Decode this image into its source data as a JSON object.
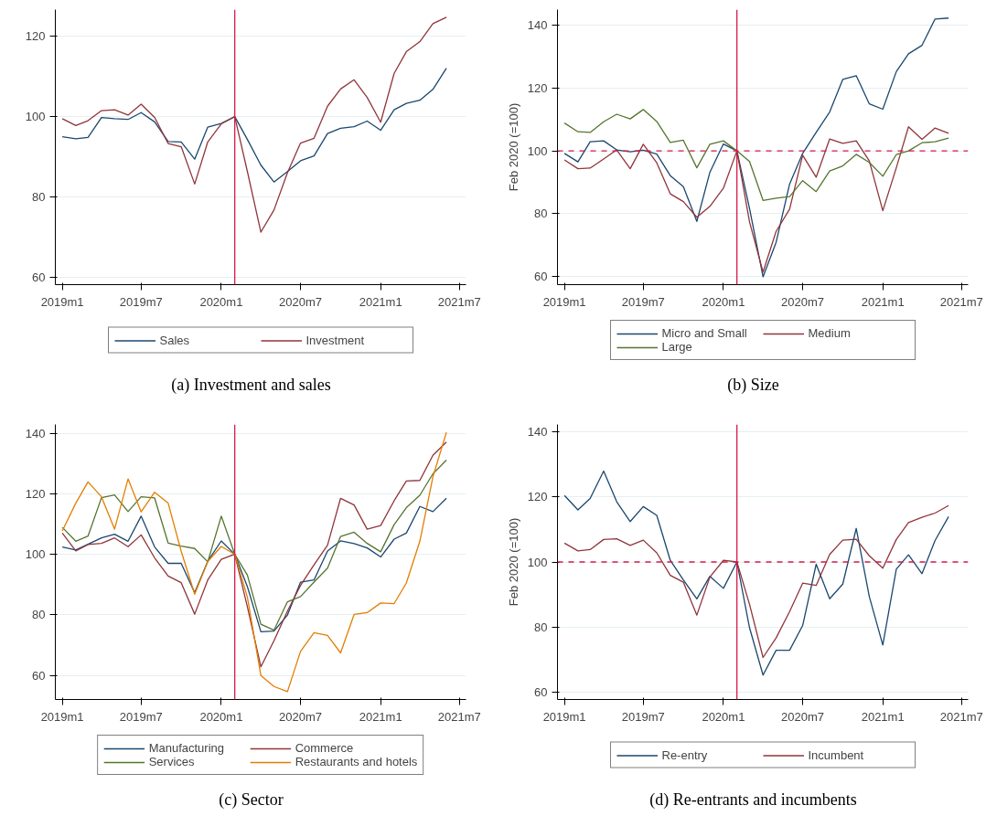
{
  "chart_data": [
    {
      "type": "line",
      "title": "(a) Investment and sales",
      "xlim": [
        "2018-12-16",
        "2021-07-16"
      ],
      "ylim": [
        58.1,
        126.7
      ],
      "grid": "y",
      "legend": "bottom",
      "x": [
        "2019-01",
        "2019-02",
        "2019-03",
        "2019-04",
        "2019-05",
        "2019-06",
        "2019-07",
        "2019-08",
        "2019-09",
        "2019-10",
        "2019-11",
        "2019-12",
        "2020-01",
        "2020-02",
        "2020-03",
        "2020-04",
        "2020-05",
        "2020-06",
        "2020-07",
        "2020-08",
        "2020-09",
        "2020-10",
        "2020-11",
        "2020-12",
        "2021-01",
        "2021-02",
        "2021-03",
        "2021-04",
        "2021-05",
        "2021-06"
      ],
      "xticks": [
        {
          "value": "2019-01",
          "label": "2019m1"
        },
        {
          "value": "2019-07",
          "label": "2019m7"
        },
        {
          "value": "2020-01",
          "label": "2020m1"
        },
        {
          "value": "2020-07",
          "label": "2020m7"
        },
        {
          "value": "2021-01",
          "label": "2021m1"
        },
        {
          "value": "2021-07",
          "label": "2021m7"
        }
      ],
      "yticks": [
        60,
        80,
        100,
        120
      ],
      "ref_lines": [
        {
          "axis": "x",
          "value": "2020-02",
          "label": null,
          "color": "#d6194a",
          "line_style": "solid"
        }
      ],
      "series": [
        {
          "name": "Sales",
          "color": "#1a476f",
          "values": [
            95.0,
            94.5,
            94.8,
            99.8,
            99.5,
            99.3,
            101.0,
            98.7,
            93.8,
            93.7,
            89.4,
            97.4,
            98.3,
            100,
            94.3,
            87.9,
            83.7,
            86.3,
            89.0,
            90.2,
            95.8,
            97.1,
            97.5,
            98.9,
            96.6,
            101.7,
            103.3,
            104.1,
            106.8,
            112.1
          ]
        },
        {
          "name": "Investment",
          "color": "#90353b",
          "values": [
            99.5,
            97.8,
            99.0,
            101.5,
            101.7,
            100.4,
            103.1,
            99.8,
            93.3,
            92.5,
            83.2,
            93.7,
            98.2,
            100,
            86.3,
            71.2,
            76.7,
            86.0,
            93.4,
            94.6,
            102.6,
            106.9,
            109.2,
            104.8,
            98.6,
            110.8,
            116.2,
            118.7,
            123.2,
            124.8
          ]
        }
      ]
    },
    {
      "type": "line",
      "title": "(b) Size",
      "ylabel": "Feb 2020 (=100)",
      "xlim": [
        "2018-12-16",
        "2021-07-16"
      ],
      "ylim": [
        57.3,
        145.1
      ],
      "grid": "y",
      "legend": "bottom",
      "x": [
        "2019-01",
        "2019-02",
        "2019-03",
        "2019-04",
        "2019-05",
        "2019-06",
        "2019-07",
        "2019-08",
        "2019-09",
        "2019-10",
        "2019-11",
        "2019-12",
        "2020-01",
        "2020-02",
        "2020-03",
        "2020-04",
        "2020-05",
        "2020-06",
        "2020-07",
        "2020-08",
        "2020-09",
        "2020-10",
        "2020-11",
        "2020-12",
        "2021-01",
        "2021-02",
        "2021-03",
        "2021-04",
        "2021-05",
        "2021-06"
      ],
      "xticks": [
        {
          "value": "2019-01",
          "label": "2019m1"
        },
        {
          "value": "2019-07",
          "label": "2019m7"
        },
        {
          "value": "2020-01",
          "label": "2020m1"
        },
        {
          "value": "2020-07",
          "label": "2020m7"
        },
        {
          "value": "2021-01",
          "label": "2021m1"
        },
        {
          "value": "2021-07",
          "label": "2021m7"
        }
      ],
      "yticks": [
        60,
        80,
        100,
        120,
        140
      ],
      "ref_lines": [
        {
          "axis": "x",
          "value": "2020-02",
          "label": null,
          "color": "#d6194a",
          "line_style": "solid"
        },
        {
          "axis": "y",
          "value": 100,
          "label": null,
          "color": "#d6194a",
          "line_style": "dashed"
        }
      ],
      "series": [
        {
          "name": "Micro and Small",
          "color": "#1a476f",
          "values": [
            99.2,
            96.5,
            102.9,
            103.2,
            100.3,
            99.7,
            100.2,
            99.0,
            92.1,
            88.6,
            77.5,
            93.2,
            102.2,
            100,
            81.6,
            59.8,
            70.8,
            89.4,
            99.2,
            105.9,
            112.4,
            122.8,
            124.0,
            115.0,
            113.3,
            125.3,
            131.0,
            133.7,
            142.1,
            142.4
          ]
        },
        {
          "name": "Medium",
          "color": "#90353b",
          "values": [
            97.1,
            94.3,
            94.5,
            97.4,
            100.3,
            94.3,
            102.1,
            96.2,
            86.3,
            83.8,
            78.8,
            82.3,
            88.1,
            100,
            77.3,
            61.3,
            74.3,
            81.4,
            98.6,
            91.6,
            103.8,
            102.4,
            103.2,
            96.8,
            80.9,
            94.6,
            107.7,
            103.7,
            107.3,
            105.6
          ]
        },
        {
          "name": "Large",
          "color": "#55752f",
          "values": [
            108.9,
            106.1,
            105.9,
            109.3,
            111.7,
            110.2,
            113.2,
            109.4,
            102.7,
            103.4,
            94.6,
            102.1,
            103.2,
            100,
            96.6,
            84.2,
            84.9,
            85.4,
            90.5,
            87.0,
            93.6,
            95.2,
            98.9,
            96.3,
            91.9,
            98.8,
            100,
            102.6,
            102.9,
            104.1
          ]
        }
      ]
    },
    {
      "type": "line",
      "title": "(c) Sector",
      "xlim": [
        "2018-12-16",
        "2021-07-16"
      ],
      "ylim": [
        52.0,
        142.9
      ],
      "grid": "y",
      "legend": "bottom",
      "x": [
        "2019-01",
        "2019-02",
        "2019-03",
        "2019-04",
        "2019-05",
        "2019-06",
        "2019-07",
        "2019-08",
        "2019-09",
        "2019-10",
        "2019-11",
        "2019-12",
        "2020-01",
        "2020-02",
        "2020-03",
        "2020-04",
        "2020-05",
        "2020-06",
        "2020-07",
        "2020-08",
        "2020-09",
        "2020-10",
        "2020-11",
        "2020-12",
        "2021-01",
        "2021-02",
        "2021-03",
        "2021-04",
        "2021-05",
        "2021-06"
      ],
      "xticks": [
        {
          "value": "2019-01",
          "label": "2019m1"
        },
        {
          "value": "2019-07",
          "label": "2019m7"
        },
        {
          "value": "2020-01",
          "label": "2020m1"
        },
        {
          "value": "2020-07",
          "label": "2020m7"
        },
        {
          "value": "2021-01",
          "label": "2021m1"
        },
        {
          "value": "2021-07",
          "label": "2021m7"
        }
      ],
      "yticks": [
        60,
        80,
        100,
        120,
        140
      ],
      "ref_lines": [
        {
          "axis": "x",
          "value": "2020-02",
          "label": null,
          "color": "#d6194a",
          "line_style": "solid"
        }
      ],
      "series": [
        {
          "name": "Manufacturing",
          "color": "#1a476f",
          "values": [
            102.4,
            101.4,
            103.3,
            105.4,
            106.6,
            104.3,
            112.6,
            102.4,
            97.0,
            97.0,
            87.3,
            97.7,
            104.4,
            100,
            89.3,
            74.4,
            74.6,
            79.9,
            90.8,
            91.5,
            101.1,
            104.4,
            103.5,
            102.1,
            99.1,
            105.0,
            107.0,
            115.8,
            114.1,
            118.5
          ]
        },
        {
          "name": "Commerce",
          "color": "#90353b",
          "values": [
            107.0,
            101.1,
            103.2,
            103.6,
            105.4,
            102.5,
            106.4,
            98.8,
            92.8,
            90.6,
            80.2,
            91.5,
            98.3,
            100,
            82.6,
            62.8,
            71.4,
            81.2,
            89.7,
            96.5,
            103.0,
            118.5,
            116.3,
            108.3,
            109.5,
            117.7,
            124.2,
            124.4,
            132.7,
            137.1
          ]
        },
        {
          "name": "Services",
          "color": "#55752f",
          "values": [
            108.9,
            104.3,
            106.0,
            118.7,
            119.6,
            114.1,
            119.0,
            118.6,
            103.7,
            102.7,
            101.9,
            97.5,
            112.6,
            100,
            93.1,
            76.9,
            74.9,
            84.3,
            86.0,
            90.8,
            95.4,
            105.9,
            107.3,
            103.6,
            100.8,
            109.8,
            115.4,
            119.5,
            126.6,
            131.1
          ]
        },
        {
          "name": "Restaurants and hotels",
          "color": "#e37e00",
          "values": [
            107.7,
            116.9,
            123.9,
            119.0,
            108.3,
            124.9,
            114.0,
            120.5,
            116.9,
            101.0,
            86.8,
            97.6,
            102.6,
            100,
            85.8,
            59.9,
            56.3,
            54.6,
            67.9,
            74.1,
            73.2,
            67.4,
            80.1,
            80.7,
            83.9,
            83.7,
            90.5,
            104.3,
            125.6,
            140.3
          ]
        }
      ]
    },
    {
      "type": "line",
      "title": "(d) Re-entrants and incumbents",
      "ylabel": "Feb 2020 (=100)",
      "xlim": [
        "2018-12-16",
        "2021-07-16"
      ],
      "ylim": [
        57.8,
        142.2
      ],
      "grid": "y",
      "legend": "bottom",
      "x": [
        "2019-01",
        "2019-02",
        "2019-03",
        "2019-04",
        "2019-05",
        "2019-06",
        "2019-07",
        "2019-08",
        "2019-09",
        "2019-10",
        "2019-11",
        "2019-12",
        "2020-01",
        "2020-02",
        "2020-03",
        "2020-04",
        "2020-05",
        "2020-06",
        "2020-07",
        "2020-08",
        "2020-09",
        "2020-10",
        "2020-11",
        "2020-12",
        "2021-01",
        "2021-02",
        "2021-03",
        "2021-04",
        "2021-05",
        "2021-06"
      ],
      "xticks": [
        {
          "value": "2019-01",
          "label": "2019m1"
        },
        {
          "value": "2019-07",
          "label": "2019m7"
        },
        {
          "value": "2020-01",
          "label": "2020m1"
        },
        {
          "value": "2020-07",
          "label": "2020m7"
        },
        {
          "value": "2021-01",
          "label": "2021m1"
        },
        {
          "value": "2021-07",
          "label": "2021m7"
        }
      ],
      "yticks": [
        60,
        80,
        100,
        120,
        140
      ],
      "ref_lines": [
        {
          "axis": "x",
          "value": "2020-02",
          "label": null,
          "color": "#d6194a",
          "line_style": "solid"
        },
        {
          "axis": "y",
          "value": 100,
          "label": null,
          "color": "#d6194a",
          "line_style": "dashed"
        }
      ],
      "series": [
        {
          "name": "Re-entry",
          "color": "#1a476f",
          "values": [
            120.4,
            116.0,
            119.5,
            127.9,
            118.5,
            112.4,
            117.0,
            114.3,
            100.5,
            94.5,
            88.7,
            95.6,
            91.9,
            100,
            79.8,
            65.3,
            72.9,
            72.9,
            80.5,
            99.3,
            88.7,
            93.2,
            110.3,
            89.4,
            74.5,
            97.8,
            102.2,
            96.4,
            106.6,
            113.9
          ]
        },
        {
          "name": "Incumbent",
          "color": "#90353b",
          "values": [
            105.8,
            103.4,
            103.8,
            106.9,
            107.1,
            105.1,
            106.7,
            102.8,
            95.9,
            93.8,
            83.7,
            95.4,
            100.5,
            100,
            87.0,
            70.7,
            76.7,
            84.8,
            93.5,
            92.8,
            102.3,
            106.7,
            107.0,
            101.9,
            98.1,
            106.9,
            112.1,
            113.7,
            115.0,
            117.3
          ]
        }
      ]
    }
  ]
}
